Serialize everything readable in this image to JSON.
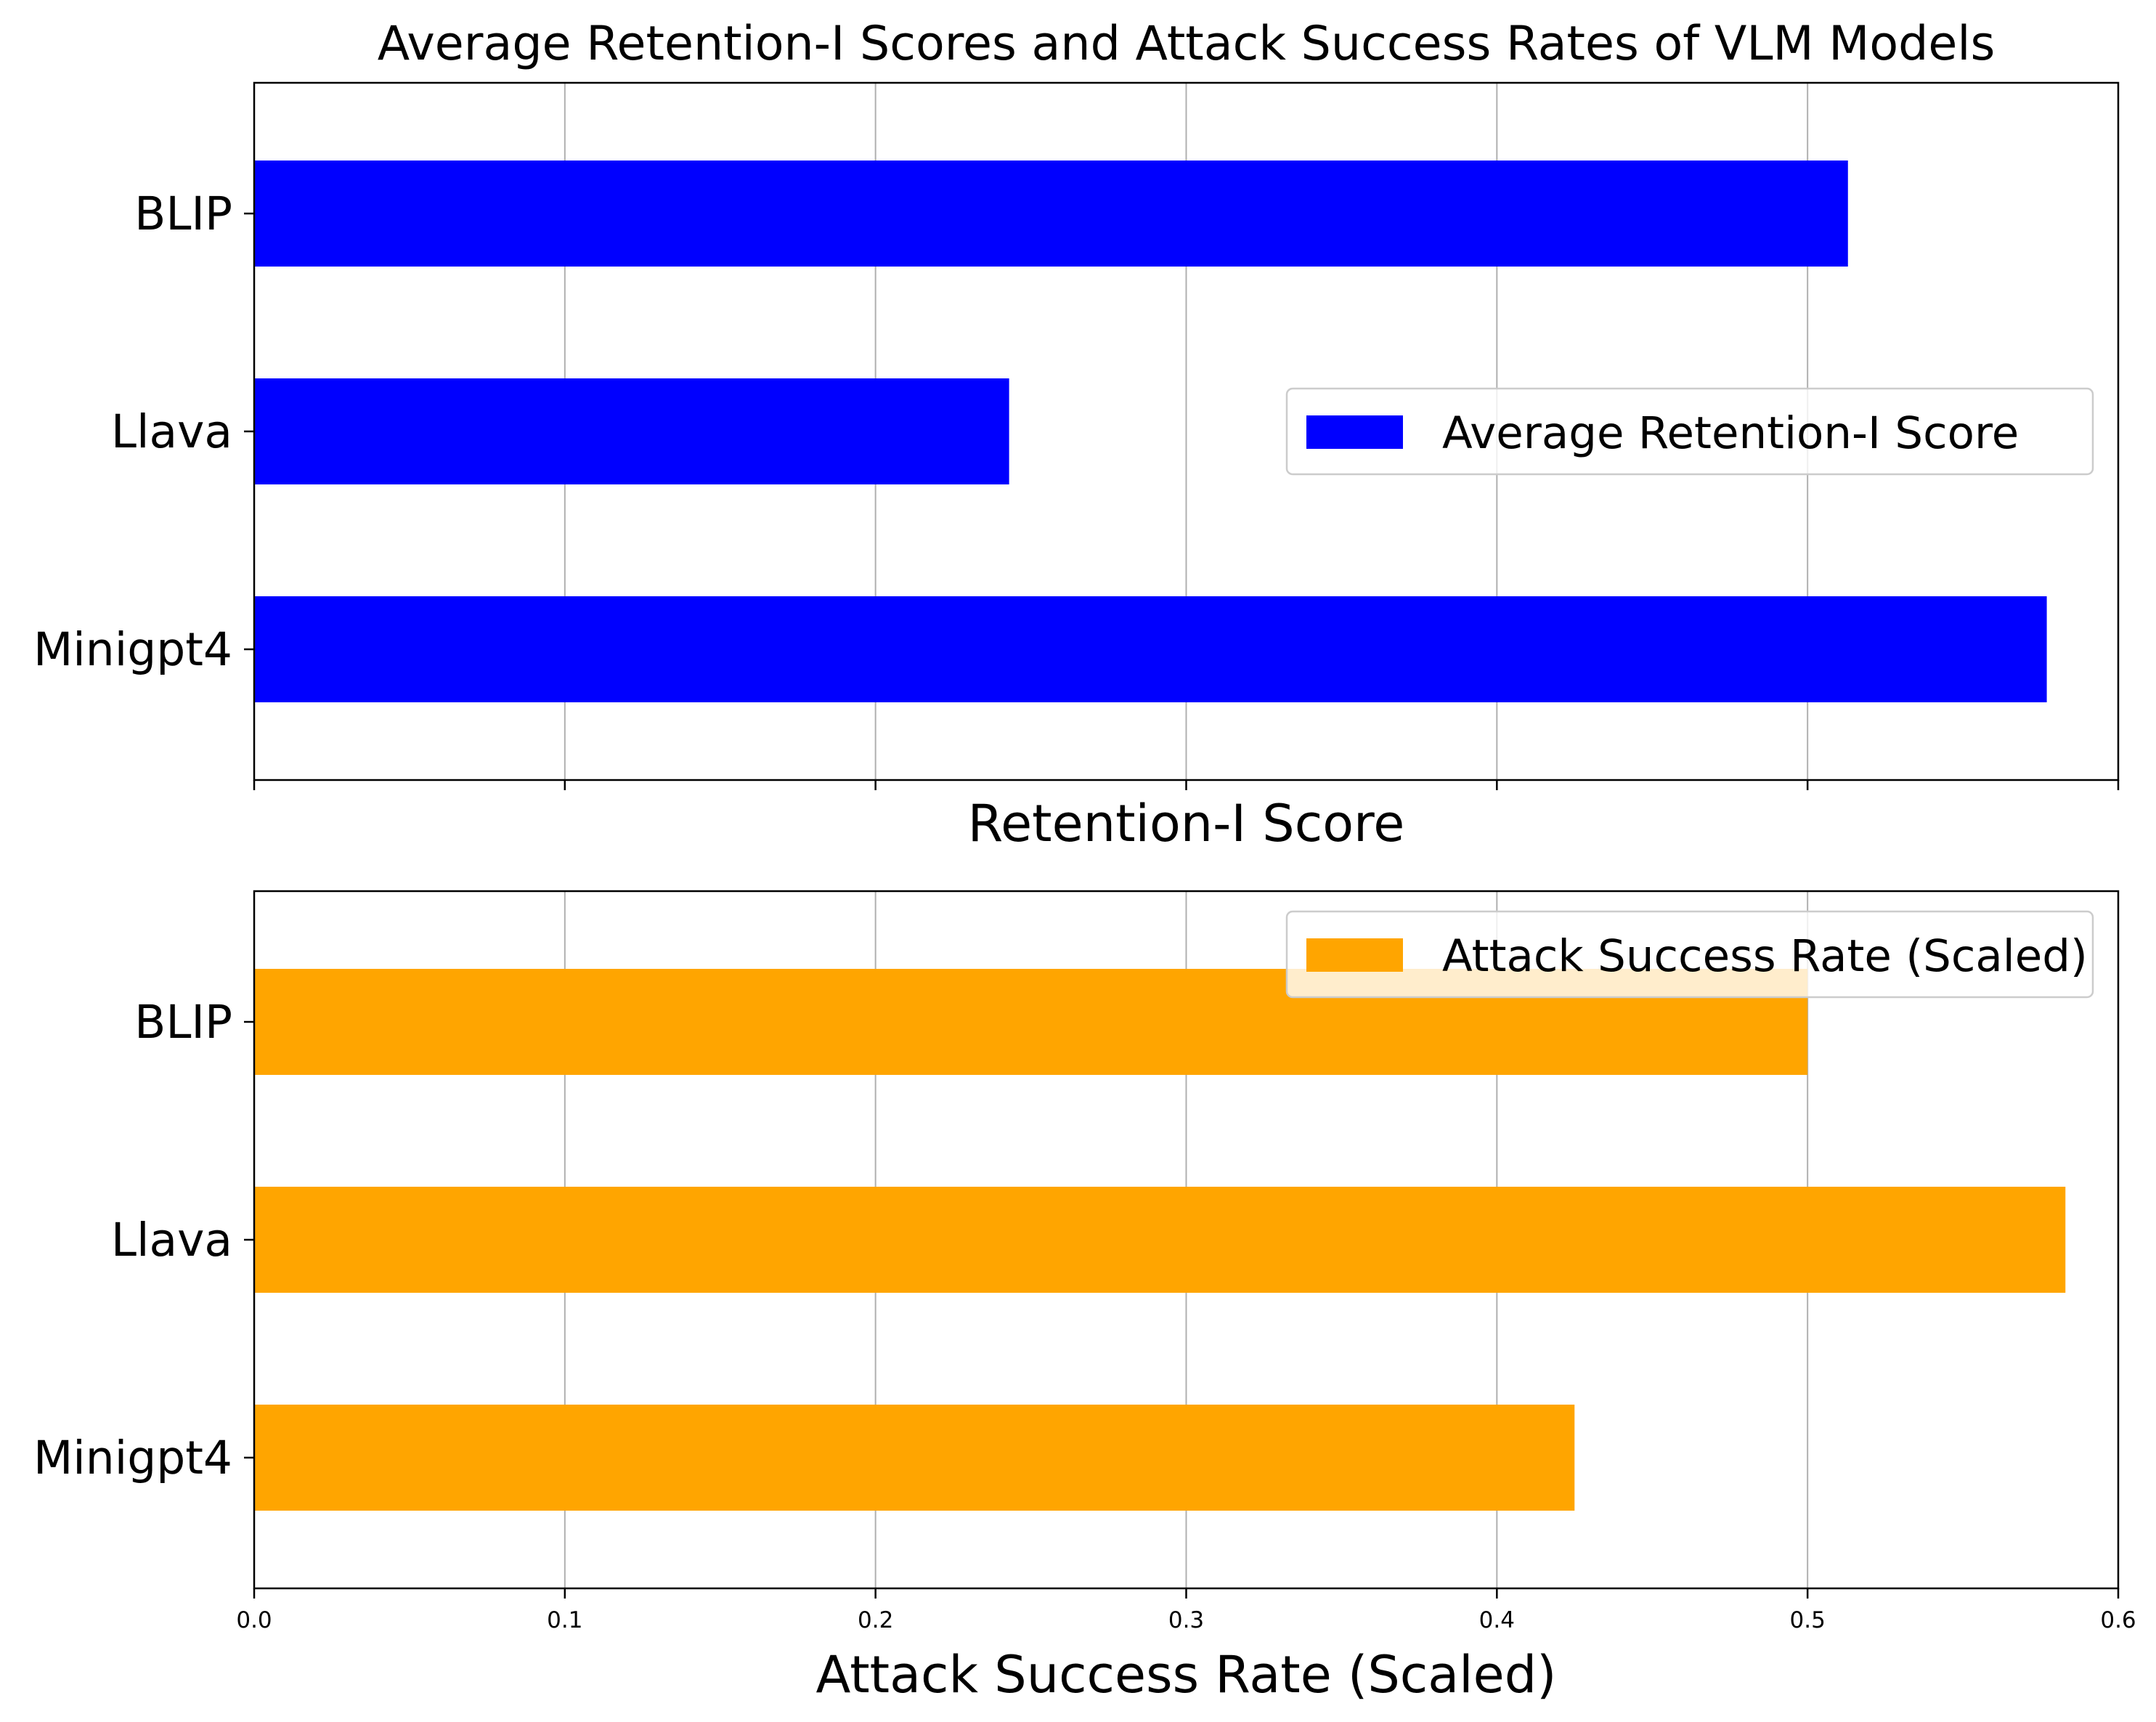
{
  "chart_data": [
    {
      "type": "bar",
      "orientation": "horizontal",
      "title": "Average Retention-I Scores and Attack Success Rates of VLM Models",
      "xlabel": "Retention-I Score",
      "ylabel": "",
      "categories": [
        "BLIP",
        "Llava",
        "Minigpt4"
      ],
      "series": [
        {
          "name": "Average Retention-I Score",
          "color": "#0000ff",
          "values": [
            0.513,
            0.243,
            0.577
          ]
        }
      ],
      "xlim": [
        0.0,
        0.6
      ],
      "xticks": [
        "0.0",
        "0.1",
        "0.2",
        "0.3",
        "0.4",
        "0.5",
        "0.6"
      ],
      "xtick_labels_shown": false,
      "grid": "x",
      "legend_position": "center-right"
    },
    {
      "type": "bar",
      "orientation": "horizontal",
      "title": "",
      "xlabel": "Attack Success Rate (Scaled)",
      "ylabel": "",
      "categories": [
        "BLIP",
        "Llava",
        "Minigpt4"
      ],
      "series": [
        {
          "name": "Attack Success Rate (Scaled)",
          "color": "#ffa500",
          "values": [
            0.5,
            0.583,
            0.425
          ]
        }
      ],
      "xlim": [
        0.0,
        0.6
      ],
      "xticks": [
        "0.0",
        "0.1",
        "0.2",
        "0.3",
        "0.4",
        "0.5",
        "0.6"
      ],
      "xtick_labels_shown": true,
      "grid": "x",
      "legend_position": "top-right"
    }
  ]
}
